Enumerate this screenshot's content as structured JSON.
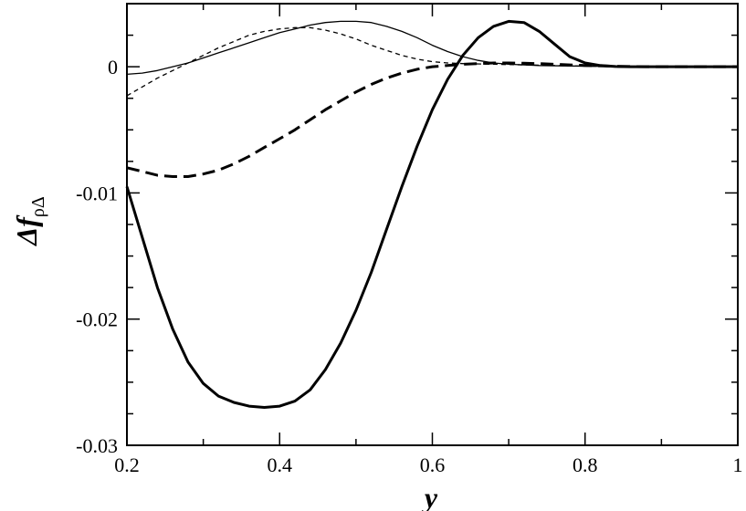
{
  "chart_data": {
    "type": "line",
    "xlabel": "y",
    "ylabel": {
      "main": "Δf",
      "subscript": "ρΔ"
    },
    "xlim": [
      0.2,
      1.0
    ],
    "ylim": [
      -0.03,
      0.005
    ],
    "x_ticks": [
      0.2,
      0.4,
      0.6,
      0.8,
      1.0
    ],
    "x_tick_labels": [
      "0.2",
      "0.4",
      "0.6",
      "0.8",
      "1"
    ],
    "y_ticks": [
      -0.03,
      -0.02,
      -0.01,
      0.0
    ],
    "y_tick_labels": [
      "-0.03",
      "-0.02",
      "-0.01",
      "0"
    ],
    "grid": false,
    "series": [
      {
        "style": {
          "stroke": "#000000",
          "width": 3,
          "dash": ""
        },
        "points": [
          [
            0.2,
            -0.0095
          ],
          [
            0.22,
            -0.0135
          ],
          [
            0.24,
            -0.0175
          ],
          [
            0.26,
            -0.0208
          ],
          [
            0.28,
            -0.0234
          ],
          [
            0.3,
            -0.0251
          ],
          [
            0.32,
            -0.0261
          ],
          [
            0.34,
            -0.0266
          ],
          [
            0.36,
            -0.0269
          ],
          [
            0.38,
            -0.027
          ],
          [
            0.4,
            -0.0269
          ],
          [
            0.42,
            -0.0265
          ],
          [
            0.44,
            -0.0256
          ],
          [
            0.46,
            -0.024
          ],
          [
            0.48,
            -0.0219
          ],
          [
            0.5,
            -0.0193
          ],
          [
            0.52,
            -0.0163
          ],
          [
            0.54,
            -0.0129
          ],
          [
            0.56,
            -0.0095
          ],
          [
            0.58,
            -0.0063
          ],
          [
            0.6,
            -0.0034
          ],
          [
            0.62,
            -0.001
          ],
          [
            0.64,
            0.0009
          ],
          [
            0.66,
            0.0023
          ],
          [
            0.68,
            0.0032
          ],
          [
            0.7,
            0.0036
          ],
          [
            0.72,
            0.0035
          ],
          [
            0.74,
            0.0028
          ],
          [
            0.76,
            0.0018
          ],
          [
            0.78,
            0.0008
          ],
          [
            0.8,
            0.0003
          ],
          [
            0.82,
            0.0001
          ],
          [
            0.84,
            2e-05
          ],
          [
            0.86,
            0
          ],
          [
            0.9,
            0
          ],
          [
            1.0,
            0
          ]
        ]
      },
      {
        "style": {
          "stroke": "#000000",
          "width": 3,
          "dash": "14 7"
        },
        "points": [
          [
            0.2,
            -0.008
          ],
          [
            0.22,
            -0.0083
          ],
          [
            0.24,
            -0.0086
          ],
          [
            0.26,
            -0.0087
          ],
          [
            0.28,
            -0.0087
          ],
          [
            0.3,
            -0.0085
          ],
          [
            0.32,
            -0.0082
          ],
          [
            0.34,
            -0.0077
          ],
          [
            0.36,
            -0.0071
          ],
          [
            0.38,
            -0.0064
          ],
          [
            0.4,
            -0.0057
          ],
          [
            0.42,
            -0.005
          ],
          [
            0.44,
            -0.0042
          ],
          [
            0.46,
            -0.0034
          ],
          [
            0.48,
            -0.0027
          ],
          [
            0.5,
            -0.002
          ],
          [
            0.52,
            -0.0014
          ],
          [
            0.54,
            -0.0009
          ],
          [
            0.56,
            -0.0005
          ],
          [
            0.58,
            -0.0002
          ],
          [
            0.6,
            0
          ],
          [
            0.62,
            0.0001
          ],
          [
            0.64,
            0.0002
          ],
          [
            0.66,
            0.00025
          ],
          [
            0.68,
            0.0003
          ],
          [
            0.7,
            0.0003
          ],
          [
            0.72,
            0.00028
          ],
          [
            0.74,
            0.00025
          ],
          [
            0.76,
            0.0002
          ],
          [
            0.78,
            0.00015
          ],
          [
            0.8,
            0.0001
          ],
          [
            0.84,
            4e-05
          ],
          [
            0.88,
            0
          ],
          [
            1.0,
            0
          ]
        ]
      },
      {
        "style": {
          "stroke": "#000000",
          "width": 1.3,
          "dash": ""
        },
        "points": [
          [
            0.2,
            -0.0006
          ],
          [
            0.22,
            -0.0005
          ],
          [
            0.24,
            -0.0003
          ],
          [
            0.26,
            0
          ],
          [
            0.28,
            0.0003
          ],
          [
            0.3,
            0.0007
          ],
          [
            0.32,
            0.0011
          ],
          [
            0.34,
            0.0015
          ],
          [
            0.36,
            0.0019
          ],
          [
            0.38,
            0.0023
          ],
          [
            0.4,
            0.0027
          ],
          [
            0.42,
            0.003
          ],
          [
            0.44,
            0.0033
          ],
          [
            0.46,
            0.0035
          ],
          [
            0.48,
            0.0036
          ],
          [
            0.5,
            0.0036
          ],
          [
            0.52,
            0.0035
          ],
          [
            0.54,
            0.0032
          ],
          [
            0.56,
            0.0028
          ],
          [
            0.58,
            0.0023
          ],
          [
            0.6,
            0.0017
          ],
          [
            0.62,
            0.0012
          ],
          [
            0.64,
            0.0008
          ],
          [
            0.66,
            0.0005
          ],
          [
            0.68,
            0.0003
          ],
          [
            0.7,
            0.0002
          ],
          [
            0.72,
            0.00015
          ],
          [
            0.74,
            0.0001
          ],
          [
            0.78,
            6e-05
          ],
          [
            0.82,
            3e-05
          ],
          [
            0.86,
            1e-05
          ],
          [
            0.9,
            0
          ],
          [
            1.0,
            0
          ]
        ]
      },
      {
        "style": {
          "stroke": "#000000",
          "width": 1.3,
          "dash": "5 4"
        },
        "points": [
          [
            0.2,
            -0.0023
          ],
          [
            0.22,
            -0.0016
          ],
          [
            0.24,
            -0.0009
          ],
          [
            0.26,
            -0.0003
          ],
          [
            0.28,
            0.0003
          ],
          [
            0.3,
            0.0009
          ],
          [
            0.32,
            0.0015
          ],
          [
            0.34,
            0.002
          ],
          [
            0.36,
            0.0025
          ],
          [
            0.38,
            0.0028
          ],
          [
            0.4,
            0.003
          ],
          [
            0.42,
            0.0031
          ],
          [
            0.44,
            0.0031
          ],
          [
            0.46,
            0.0029
          ],
          [
            0.48,
            0.0026
          ],
          [
            0.5,
            0.0022
          ],
          [
            0.52,
            0.0017
          ],
          [
            0.54,
            0.0013
          ],
          [
            0.56,
            0.0009
          ],
          [
            0.58,
            0.0006
          ],
          [
            0.6,
            0.0004
          ],
          [
            0.62,
            0.0003
          ],
          [
            0.64,
            0.00025
          ],
          [
            0.68,
            0.0002
          ],
          [
            0.72,
            0.00015
          ],
          [
            0.76,
            0.0001
          ],
          [
            0.8,
            5e-05
          ],
          [
            0.85,
            2e-05
          ],
          [
            0.9,
            0
          ],
          [
            1.0,
            0
          ]
        ]
      }
    ]
  }
}
